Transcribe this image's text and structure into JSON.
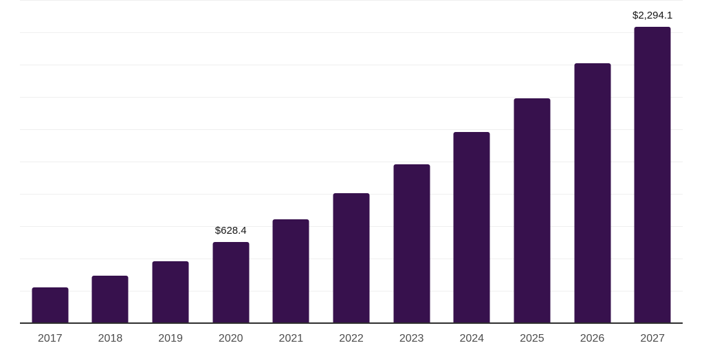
{
  "chart_data": {
    "type": "bar",
    "title": "",
    "xlabel": "",
    "ylabel": "",
    "categories": [
      "2017",
      "2018",
      "2019",
      "2020",
      "2021",
      "2022",
      "2023",
      "2024",
      "2025",
      "2026",
      "2027"
    ],
    "values": [
      275,
      369,
      479,
      628.4,
      803,
      1008,
      1230,
      1479,
      1740,
      2012,
      2294.1
    ],
    "data_labels": [
      "",
      "",
      "",
      "$628.4",
      "",
      "",
      "",
      "",
      "",
      "",
      "$2,294.1"
    ],
    "value_prefix": "$",
    "ylim": [
      0,
      2500
    ],
    "grid_step": 250,
    "grid": true,
    "legend": false,
    "y_tick_labels_visible": false
  },
  "colors": {
    "bar": "#37114d",
    "gridline": "#efefef",
    "axis_line": "#2e2e2e",
    "tick_label": "#4d4d4d",
    "data_label": "#141414",
    "background": "#ffffff"
  }
}
